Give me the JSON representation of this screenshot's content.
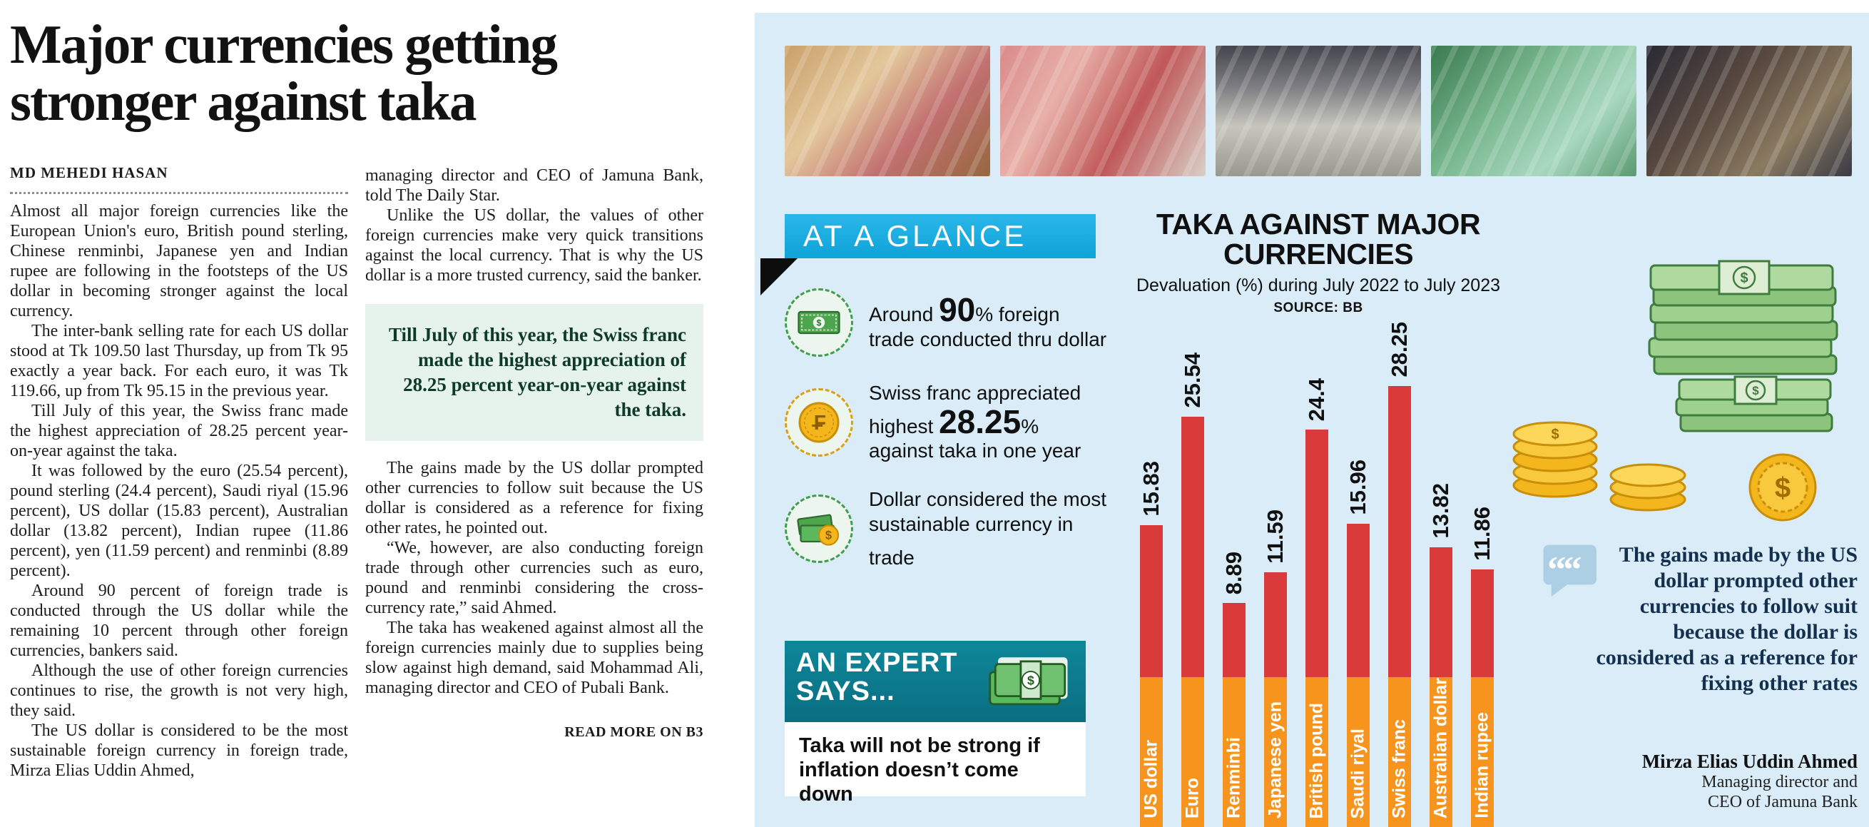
{
  "article": {
    "headline": "Major currencies getting stronger against taka",
    "byline": "MD MEHEDI HASAN",
    "col1": [
      "Almost all major foreign currencies like the European Union's euro, British pound sterling, Chinese renminbi, Japanese yen and Indian rupee are following in the footsteps of the US dollar in becoming stronger against the local currency.",
      "The inter-bank selling rate for each US dollar stood at Tk 109.50 last Thursday, up from Tk 95 exactly a year back. For each euro, it was Tk 119.66, up from Tk 95.15 in the previous year.",
      "Till July of this year, the Swiss franc made the highest appreciation of 28.25 percent year-on-year against the taka.",
      "It was followed by the euro (25.54 percent), pound sterling (24.4 percent), Saudi riyal (15.96 percent), US dollar (15.83 percent), Australian dollar (13.82 percent), Indian rupee (11.86 percent), yen (11.59 percent) and renminbi (8.89 percent).",
      "Around 90 percent of foreign trade is conducted through the US dollar while the remaining 10 percent through other foreign currencies, bankers said.",
      "Although the use of other foreign currencies continues to rise, the growth is not very high, they said.",
      "The US dollar is considered to be the most sustainable foreign currency in foreign trade, Mirza Elias Uddin Ahmed,"
    ],
    "col2_top": [
      "managing director and CEO of Jamuna Bank, told The Daily Star.",
      "Unlike the US dollar, the values of other foreign currencies make very quick transitions against the local currency. That is why the US dollar is a more trusted currency, said the banker."
    ],
    "pull_quote": "Till July of this year, the Swiss franc made the highest appreciation of 28.25 percent year-on-year against the taka.",
    "col2_bottom": [
      "The gains made by the US dollar prompted other currencies to follow suit because the US dollar is considered as a reference for fixing other rates, he pointed out.",
      "“We, however, are also conducting foreign trade through other currencies such as euro, pound and renminbi considering the cross-currency rate,” said Ahmed.",
      "The taka has weakened against almost all the foreign currencies mainly due to supplies being slow against high demand, said Mohammad Ali, managing director and CEO of Pubali Bank."
    ],
    "read_more": "READ MORE ON B3"
  },
  "infographic": {
    "at_a_glance_label": "AT A GLANCE",
    "photos": [
      "currency-photo-1",
      "currency-photo-2",
      "currency-photo-3",
      "currency-photo-4",
      "currency-photo-5"
    ],
    "glance_items": [
      {
        "icon": "dollar-bill-icon",
        "pre": "Around ",
        "big": "90",
        "post": "% foreign trade conducted thru dollar"
      },
      {
        "icon": "franc-coin-icon",
        "pre": "Swiss franc appreciated highest ",
        "big": "28.25",
        "post": "% against taka in one year"
      },
      {
        "icon": "notes-coin-icon",
        "pre": "Dollar considered the most sustainable currency in trade",
        "big": "",
        "post": ""
      }
    ],
    "expert_box": {
      "title": "AN EXPERT SAYS...",
      "icon": "money-bundle-icon"
    },
    "expert_quote": "Taka will not be strong if inflation doesn’t come down",
    "quote": {
      "icon": "quote-icon",
      "text": "The gains made by the US dollar prompted other currencies to follow suit because the dollar is considered as a reference for fixing other rates",
      "author": "Mirza Elias Uddin Ahmed",
      "role_line1": "Managing director and",
      "role_line2": "CEO of Jamuna Bank"
    }
  },
  "chart_data": {
    "type": "bar",
    "title": "TAKA AGAINST MAJOR CURRENCIES",
    "subtitle": "Devaluation (%) during July 2022 to July 2023",
    "source": "SOURCE: BB",
    "categories": [
      "US dollar",
      "Euro",
      "Renminbi",
      "Japanese yen",
      "British pound",
      "Saudi riyal",
      "Swiss franc",
      "Australian dollar",
      "Indian rupee"
    ],
    "values": [
      15.83,
      25.54,
      8.89,
      11.59,
      24.4,
      15.96,
      28.25,
      13.82,
      11.86
    ],
    "ylim": [
      0,
      30
    ],
    "bar_colors": {
      "top": "#d93a3a",
      "base": "#f7941e"
    },
    "value_labels_rotated": true,
    "legend_position": "none",
    "grid": false
  },
  "colors": {
    "panel_bg": "#d9ecf7",
    "accent_cyan": "#1fb1e6",
    "expert_teal": "#0c7c8f",
    "bar_red": "#d93a3a",
    "bar_orange": "#f7941e",
    "pullquote_bg": "#e6f2ec",
    "pullquote_text": "#0d3a2a",
    "quote_navy": "#14304f"
  }
}
